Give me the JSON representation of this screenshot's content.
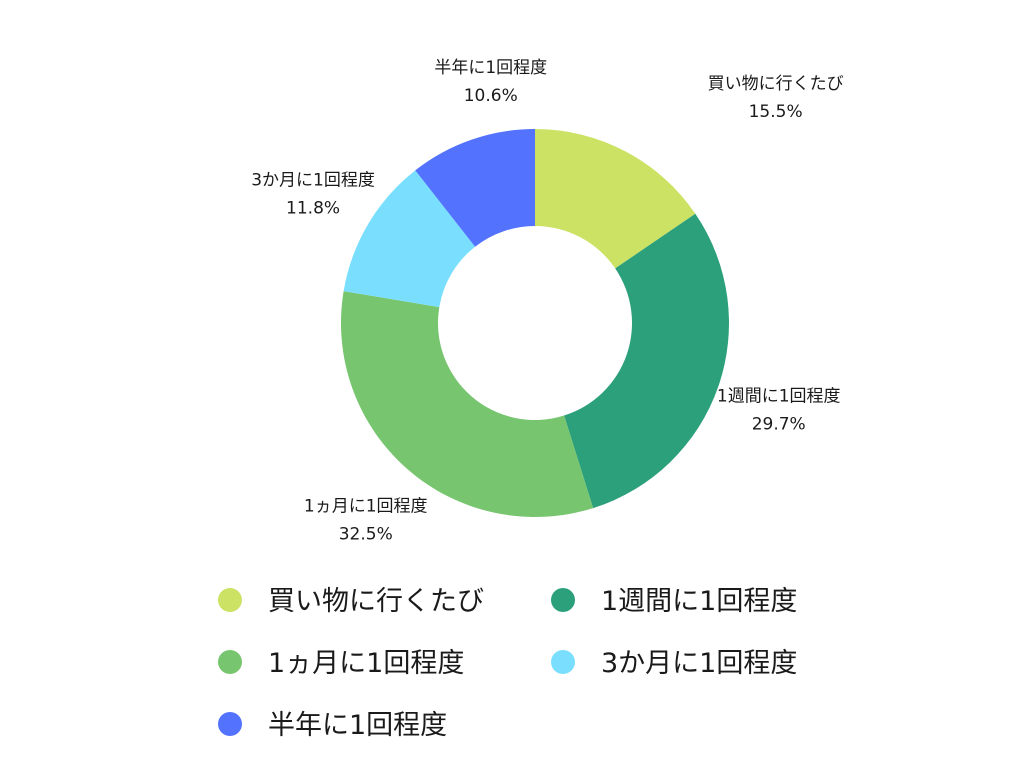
{
  "chart_data": {
    "type": "pie",
    "style": "donut",
    "start_angle_deg": 0,
    "direction": "clockwise",
    "slices": [
      {
        "label": "買い物に行くたび",
        "value": 15.5,
        "display": "15.5%",
        "color": "#cce265"
      },
      {
        "label": "1週間に1回程度",
        "value": 29.7,
        "display": "29.7%",
        "color": "#2ca07b"
      },
      {
        "label": "1ヵ月に1回程度",
        "value": 32.5,
        "display": "32.5%",
        "color": "#77c56f"
      },
      {
        "label": "3か月に1回程度",
        "value": 11.8,
        "display": "11.8%",
        "color": "#7adffe"
      },
      {
        "label": "半年に1回程度",
        "value": 10.6,
        "display": "10.6%",
        "color": "#5373fe"
      }
    ],
    "legend": {
      "placement": "bottom",
      "columns": 2
    }
  }
}
